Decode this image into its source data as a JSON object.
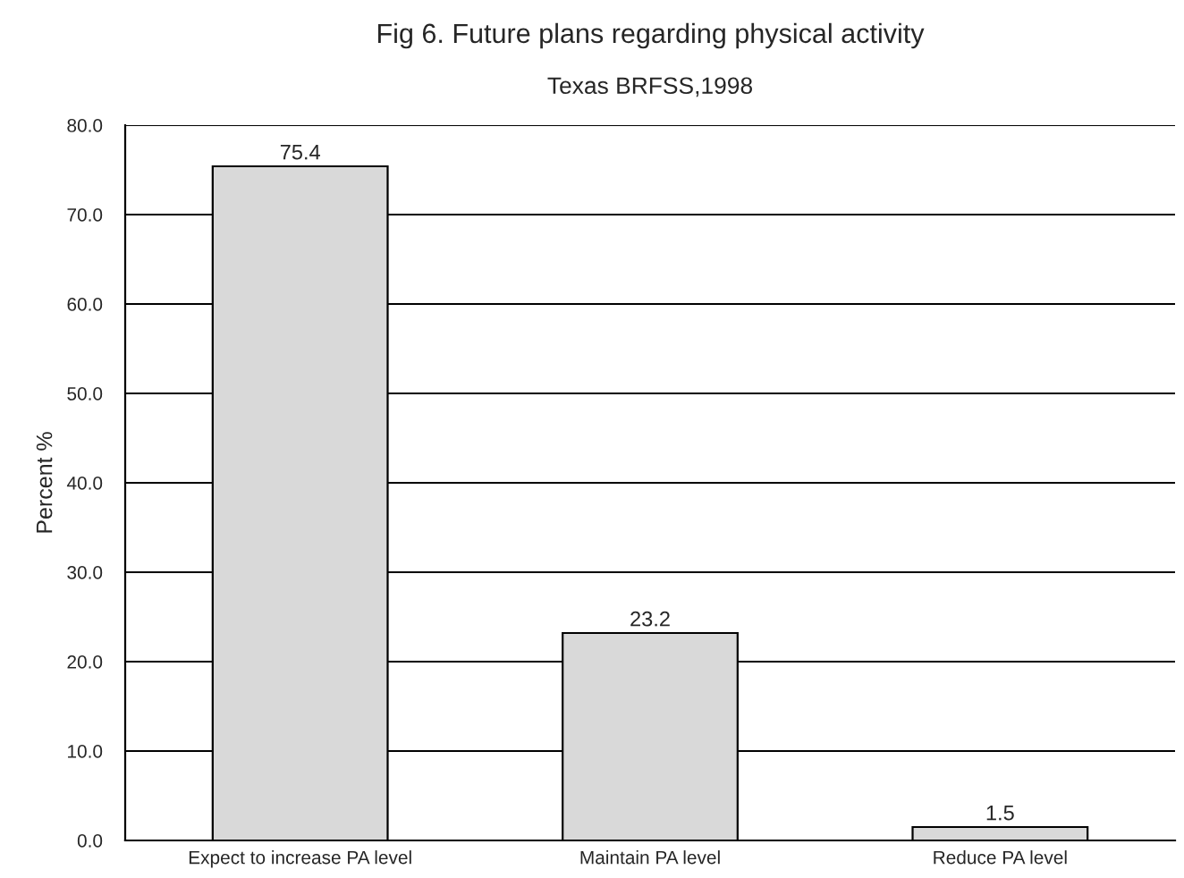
{
  "chart_data": {
    "type": "bar",
    "title": "Fig 6. Future plans regarding physical activity",
    "subtitle": "Texas BRFSS,1998",
    "ylabel": "Percent %",
    "categories": [
      "Expect to increase PA level",
      "Maintain PA level",
      "Reduce PA level"
    ],
    "values": [
      75.4,
      23.2,
      1.5
    ],
    "color": "#d9d9d9",
    "data_labels": true,
    "ylim": [
      0,
      80
    ],
    "yticks": [
      {
        "value": 0,
        "label": "0.0"
      },
      {
        "value": 10,
        "label": "10.0"
      },
      {
        "value": 20,
        "label": "20.0"
      },
      {
        "value": 30,
        "label": "30.0"
      },
      {
        "value": 40,
        "label": "40.0"
      },
      {
        "value": 50,
        "label": "50.0"
      },
      {
        "value": 60,
        "label": "60.0"
      },
      {
        "value": 70,
        "label": "70.0"
      },
      {
        "value": 80,
        "label": "80.0"
      }
    ],
    "grid": "y",
    "legend": false
  }
}
